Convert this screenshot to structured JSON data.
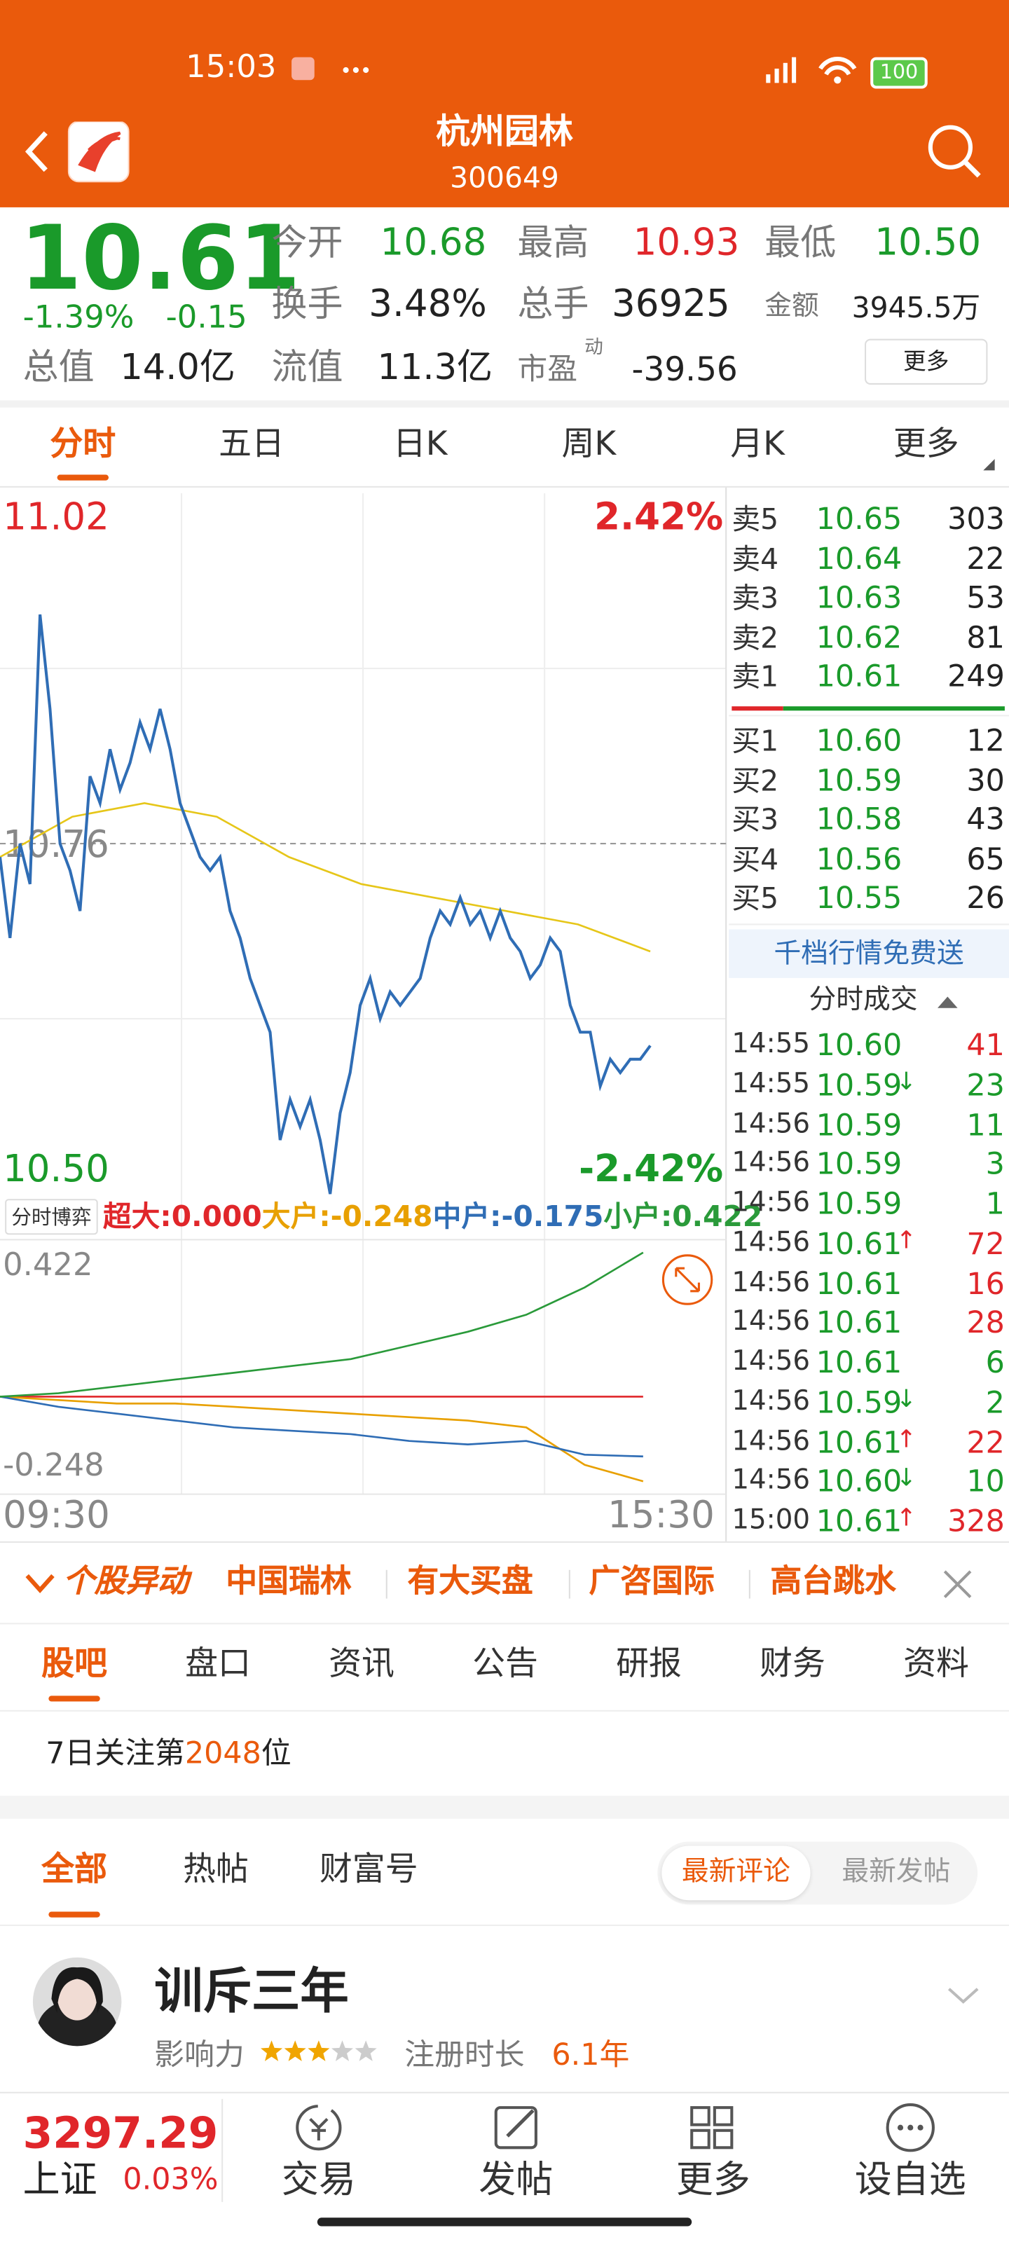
{
  "status_bar": {
    "time": "15:03",
    "battery": "100"
  },
  "header": {
    "title": "杭州园林",
    "code": "300649"
  },
  "quote": {
    "price": "10.61",
    "change_pct": "-1.39%",
    "change": "-0.15",
    "open_label": "今开",
    "open": "10.68",
    "high_label": "最高",
    "high": "10.93",
    "low_label": "最低",
    "low": "10.50",
    "turnover_label": "换手",
    "turnover": "3.48%",
    "volume_label": "总手",
    "volume": "36925",
    "amount_label": "金额",
    "amount": "3945.5万",
    "mcap_label": "总值",
    "mcap": "14.0亿",
    "float_label": "流值",
    "float": "11.3亿",
    "pe_label": "市盈",
    "pe_sup": "动",
    "pe": "-39.56",
    "more": "更多"
  },
  "chart_tabs": {
    "items": [
      "分时",
      "五日",
      "日K",
      "周K",
      "月K",
      "更多"
    ],
    "active": 0
  },
  "price_chart": {
    "type": "line",
    "ylim": [
      10.5,
      11.02
    ],
    "yticks": [
      {
        "value": 10.5,
        "label": "10.50"
      },
      10.76,
      11.02
    ],
    "y2lim": [
      -2.42,
      2.42
    ],
    "y2ticks": [
      {
        "value": -2.42,
        "label": "-2.42%"
      },
      {
        "value": 2.42,
        "label": "2.42%"
      }
    ],
    "reference": 10.76,
    "series": [
      {
        "color": "#2f6db5",
        "values": [
          10.75,
          10.69,
          10.76,
          10.73,
          10.93,
          10.86,
          10.76,
          10.74,
          10.71,
          10.81,
          10.79,
          10.83,
          10.8,
          10.82,
          10.85,
          10.83,
          10.86,
          10.83,
          10.79,
          10.77,
          10.75,
          10.74,
          10.75,
          10.71,
          10.69,
          10.66,
          10.64,
          10.62,
          10.54,
          10.57,
          10.55,
          10.57,
          10.54,
          10.5,
          10.56,
          10.59,
          10.64,
          10.66,
          10.63,
          10.65,
          10.64,
          10.65,
          10.66,
          10.69,
          10.71,
          10.7,
          10.72,
          10.7,
          10.71,
          10.69,
          10.71,
          10.69,
          10.68,
          10.66,
          10.67,
          10.69,
          10.68,
          10.64,
          10.62,
          10.62,
          10.58,
          10.6,
          10.59,
          10.6,
          10.6,
          10.61
        ]
      },
      {
        "color": "#e6c619",
        "values": [
          10.75,
          10.78,
          10.79,
          10.78,
          10.75,
          10.73,
          10.72,
          10.71,
          10.7,
          10.68
        ]
      }
    ]
  },
  "flow_chart": {
    "type": "line",
    "label": "分时博弈",
    "ylim": [
      -0.248,
      0.422
    ],
    "yticks": [
      -0.248,
      0.422
    ],
    "xlabels": [
      "09:30",
      "15:30"
    ],
    "series": [
      {
        "name": "超大:0.000",
        "color": "#e0262a",
        "values": [
          0,
          0,
          0,
          0,
          0,
          0,
          0,
          0,
          0,
          0,
          0,
          0
        ]
      },
      {
        "name": "大户:-0.248",
        "color": "#e8a000",
        "values": [
          0,
          -0.01,
          -0.02,
          -0.02,
          -0.03,
          -0.04,
          -0.05,
          -0.06,
          -0.07,
          -0.09,
          -0.2,
          -0.248
        ]
      },
      {
        "name": "中户:-0.175",
        "color": "#2f6db5",
        "values": [
          0,
          -0.03,
          -0.05,
          -0.07,
          -0.09,
          -0.1,
          -0.11,
          -0.13,
          -0.14,
          -0.13,
          -0.17,
          -0.175
        ]
      },
      {
        "name": "小户:0.422",
        "color": "#2a9a3a",
        "values": [
          0,
          0.01,
          0.03,
          0.05,
          0.07,
          0.09,
          0.11,
          0.15,
          0.19,
          0.24,
          0.32,
          0.422
        ]
      }
    ]
  },
  "order_book": {
    "asks": [
      [
        "卖5",
        "10.65",
        "303"
      ],
      [
        "卖4",
        "10.64",
        "22"
      ],
      [
        "卖3",
        "10.63",
        "53"
      ],
      [
        "卖2",
        "10.62",
        "81"
      ],
      [
        "卖1",
        "10.61",
        "249"
      ]
    ],
    "bids": [
      [
        "买1",
        "10.60",
        "12"
      ],
      [
        "买2",
        "10.59",
        "30"
      ],
      [
        "买3",
        "10.58",
        "43"
      ],
      [
        "买4",
        "10.56",
        "65"
      ],
      [
        "买5",
        "10.55",
        "26"
      ]
    ],
    "promo": "千档行情免费送",
    "trades_title": "分时成交"
  },
  "trades": [
    {
      "time": "14:55",
      "price": "10.60",
      "arrow": "",
      "volume": "41",
      "color": "#e0262a"
    },
    {
      "time": "14:55",
      "price": "10.59",
      "arrow": "↓",
      "volume": "23",
      "color": "#1a9a2a"
    },
    {
      "time": "14:56",
      "price": "10.59",
      "arrow": "",
      "volume": "11",
      "color": "#1a9a2a"
    },
    {
      "time": "14:56",
      "price": "10.59",
      "arrow": "",
      "volume": "3",
      "color": "#1a9a2a"
    },
    {
      "time": "14:56",
      "price": "10.59",
      "arrow": "",
      "volume": "1",
      "color": "#1a9a2a"
    },
    {
      "time": "14:56",
      "price": "10.61",
      "arrow": "↑",
      "volume": "72",
      "color": "#e0262a"
    },
    {
      "time": "14:56",
      "price": "10.61",
      "arrow": "",
      "volume": "16",
      "color": "#e0262a"
    },
    {
      "time": "14:56",
      "price": "10.61",
      "arrow": "",
      "volume": "28",
      "color": "#e0262a"
    },
    {
      "time": "14:56",
      "price": "10.61",
      "arrow": "",
      "volume": "6",
      "color": "#1a9a2a"
    },
    {
      "time": "14:56",
      "price": "10.59",
      "arrow": "↓",
      "volume": "2",
      "color": "#1a9a2a"
    },
    {
      "time": "14:56",
      "price": "10.61",
      "arrow": "↑",
      "volume": "22",
      "color": "#e0262a"
    },
    {
      "time": "14:56",
      "price": "10.60",
      "arrow": "↓",
      "volume": "10",
      "color": "#1a9a2a"
    },
    {
      "time": "15:00",
      "price": "10.61",
      "arrow": "↑",
      "volume": "328",
      "color": "#e0262a"
    }
  ],
  "alerts": {
    "title": "个股异动",
    "items": [
      "中国瑞林",
      "有大买盘",
      "广咨国际",
      "高台跳水"
    ]
  },
  "section_tabs": {
    "items": [
      "股吧",
      "盘口",
      "资讯",
      "公告",
      "研报",
      "财务",
      "资料"
    ],
    "active": 0
  },
  "rank": {
    "prefix": "7日关注第",
    "number": "2048",
    "suffix": "位"
  },
  "feed_tabs": {
    "items": [
      "全部",
      "热帖",
      "财富号"
    ],
    "active": 0,
    "sort": [
      "最新评论",
      "最新发帖"
    ]
  },
  "post": {
    "author": "训斥三年",
    "influence_label": "影响力",
    "stars": 3,
    "stars_total": 5,
    "registered_label": "注册时长",
    "registered": "6.1年"
  },
  "bottom_bar": {
    "index_value": "3297.29",
    "index_name": "上证",
    "index_change": "0.03%",
    "nav": [
      "交易",
      "发帖",
      "更多",
      "设自选"
    ]
  }
}
